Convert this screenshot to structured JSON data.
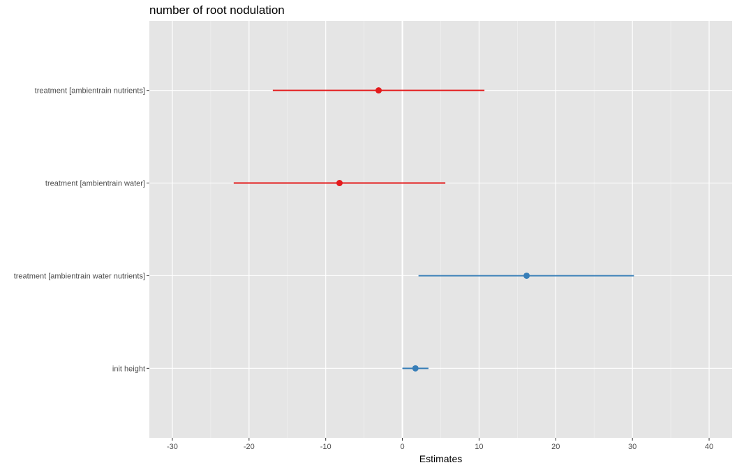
{
  "chart_data": {
    "type": "forest",
    "title": "number of root nodulation",
    "xlabel": "Estimates",
    "ylabel": "",
    "xlim": [
      -33,
      43
    ],
    "x_ticks": [
      -30,
      -20,
      -10,
      0,
      10,
      20,
      30,
      40
    ],
    "x_tick_labels": [
      "-30",
      "-20",
      "-10",
      "0",
      "10",
      "20",
      "30",
      "40"
    ],
    "grid": true,
    "legend": "none",
    "zero_line": 0,
    "terms": [
      {
        "label": "treatment [ambientrain nutrients]",
        "estimate": -3.1,
        "conf_low": -16.9,
        "conf_high": 10.7,
        "color": "#E41A1C"
      },
      {
        "label": "treatment [ambientrain water]",
        "estimate": -8.2,
        "conf_low": -22.0,
        "conf_high": 5.6,
        "color": "#E41A1C"
      },
      {
        "label": "treatment [ambientrain water nutrients]",
        "estimate": 16.2,
        "conf_low": 2.1,
        "conf_high": 30.2,
        "color": "#377EB8"
      },
      {
        "label": "init height",
        "estimate": 1.7,
        "conf_low": 0.0,
        "conf_high": 3.4,
        "color": "#377EB8"
      }
    ],
    "colors": {
      "panel_background": "#E5E5E5",
      "grid_major": "#FFFFFF",
      "grid_minor": "#F2F2F2",
      "negative": "#E41A1C",
      "positive": "#377EB8"
    }
  }
}
